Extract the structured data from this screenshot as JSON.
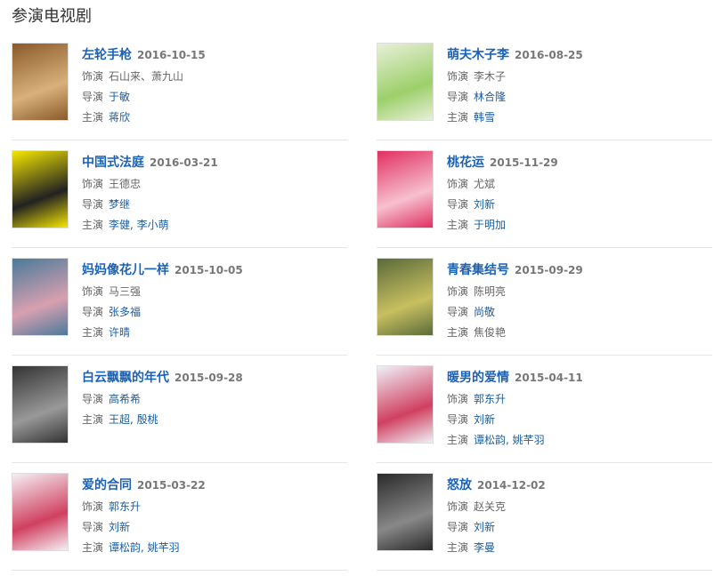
{
  "header": {
    "title": "参演电视剧"
  },
  "items": [
    {
      "title": "左轮手枪",
      "date": "2016-10-15",
      "rows": [
        {
          "label": "饰演",
          "value": "石山来、萧九山",
          "link": false
        },
        {
          "label": "导演",
          "value": "于敏",
          "link": true
        },
        {
          "label": "主演",
          "value": "蒋欣",
          "link": true
        }
      ]
    },
    {
      "title": "萌夫木子李",
      "date": "2016-08-25",
      "rows": [
        {
          "label": "饰演",
          "value": "李木子",
          "link": false
        },
        {
          "label": "导演",
          "value": "林合隆",
          "link": true
        },
        {
          "label": "主演",
          "value": "韩雪",
          "link": true
        }
      ]
    },
    {
      "title": "中国式法庭",
      "date": "2016-03-21",
      "rows": [
        {
          "label": "饰演",
          "value": "王德忠",
          "link": false
        },
        {
          "label": "导演",
          "value": "梦继",
          "link": true
        },
        {
          "label": "主演",
          "value": "李健, 李小萌",
          "link": true
        }
      ]
    },
    {
      "title": "桃花运",
      "date": "2015-11-29",
      "rows": [
        {
          "label": "饰演",
          "value": "尤斌",
          "link": false
        },
        {
          "label": "导演",
          "value": "刘新",
          "link": true
        },
        {
          "label": "主演",
          "value": "于明加",
          "link": true
        }
      ]
    },
    {
      "title": "妈妈像花儿一样",
      "date": "2015-10-05",
      "rows": [
        {
          "label": "饰演",
          "value": "马三强",
          "link": false
        },
        {
          "label": "导演",
          "value": "张多福",
          "link": true
        },
        {
          "label": "主演",
          "value": "许晴",
          "link": true
        }
      ]
    },
    {
      "title": "青春集结号",
      "date": "2015-09-29",
      "rows": [
        {
          "label": "饰演",
          "value": "陈明亮",
          "link": false
        },
        {
          "label": "导演",
          "value": "尚敬",
          "link": true
        },
        {
          "label": "主演",
          "value": "焦俊艳",
          "link": false
        }
      ]
    },
    {
      "title": "白云飘飘的年代",
      "date": "2015-09-28",
      "rows": [
        {
          "label": "导演",
          "value": "高希希",
          "link": true
        },
        {
          "label": "主演",
          "value": "王超, 殷桃",
          "link": true
        }
      ]
    },
    {
      "title": "暖男的爱情",
      "date": "2015-04-11",
      "rows": [
        {
          "label": "饰演",
          "value": "郭东升",
          "link": true
        },
        {
          "label": "导演",
          "value": "刘新",
          "link": true
        },
        {
          "label": "主演",
          "value": "谭松韵, 姚芊羽",
          "link": true
        }
      ]
    },
    {
      "title": "爱的合同",
      "date": "2015-03-22",
      "rows": [
        {
          "label": "饰演",
          "value": "郭东升",
          "link": true
        },
        {
          "label": "导演",
          "value": "刘新",
          "link": true
        },
        {
          "label": "主演",
          "value": "谭松韵, 姚芊羽",
          "link": true
        }
      ]
    },
    {
      "title": "怒放",
      "date": "2014-12-02",
      "rows": [
        {
          "label": "饰演",
          "value": "赵关克",
          "link": false
        },
        {
          "label": "导演",
          "value": "刘新",
          "link": true
        },
        {
          "label": "主演",
          "value": "李曼",
          "link": true
        }
      ]
    }
  ]
}
